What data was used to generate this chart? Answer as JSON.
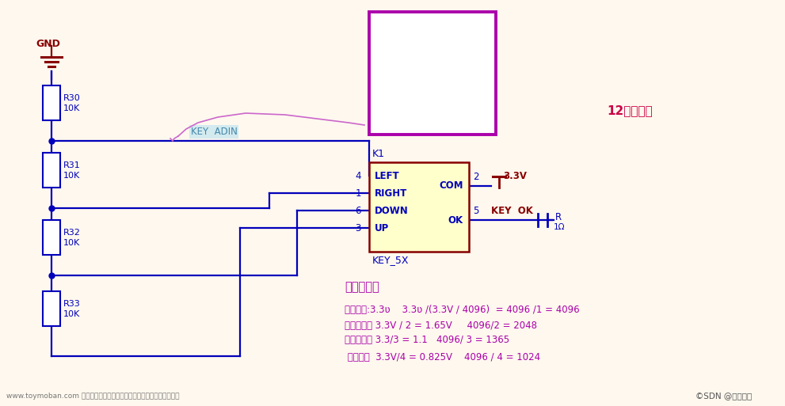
{
  "bg_color": "#fef8ee",
  "blue": "#0000bb",
  "dark_red": "#880000",
  "purple": "#aa00aa",
  "magenta_wire": "#cc66cc",
  "title_12bit": "12位分辨率",
  "gnd_label": "GND",
  "resistors": [
    [
      "R30",
      "10K"
    ],
    [
      "R31",
      "10K"
    ],
    [
      "R32",
      "10K"
    ],
    [
      "R33",
      "10K"
    ]
  ],
  "key_adin_label": "KEY  ADIN",
  "k1_label": "K1",
  "key_5x_label": "KEY_5X",
  "ic_pins_left": [
    "4",
    "1",
    "6",
    "3"
  ],
  "ic_labels_left": [
    "LEFT",
    "RIGHT",
    "DOWN",
    "UP"
  ],
  "ic_labels_right": [
    "COM",
    "OK"
  ],
  "ic_3v3": "3.3V",
  "ic_key_ok": "KEY  OK",
  "r_label": "R",
  "r_value": "1Ω",
  "voltage_divider_title": "电阱分压：",
  "formula_line1": "按下左键:3.3ʋ    3.3ʋ /(3.3V / 4096)  = 4096 /1 = 4096",
  "formula_line2": "按下右键： 3.3V / 2 = 1.65V     4096/2 = 2048",
  "formula_line3": "按下下键： 3.3/3 = 1.1   4096/ 3 = 1365",
  "formula_line4": " 按下上键  3.3V/4 = 0.825V    4096 / 4 = 1024",
  "watermark": "www.toymoban.com 网络图片仅供展示，非存储，如有侵权请联系删除。",
  "csdn_label": "©SDN @牜人倦莹"
}
